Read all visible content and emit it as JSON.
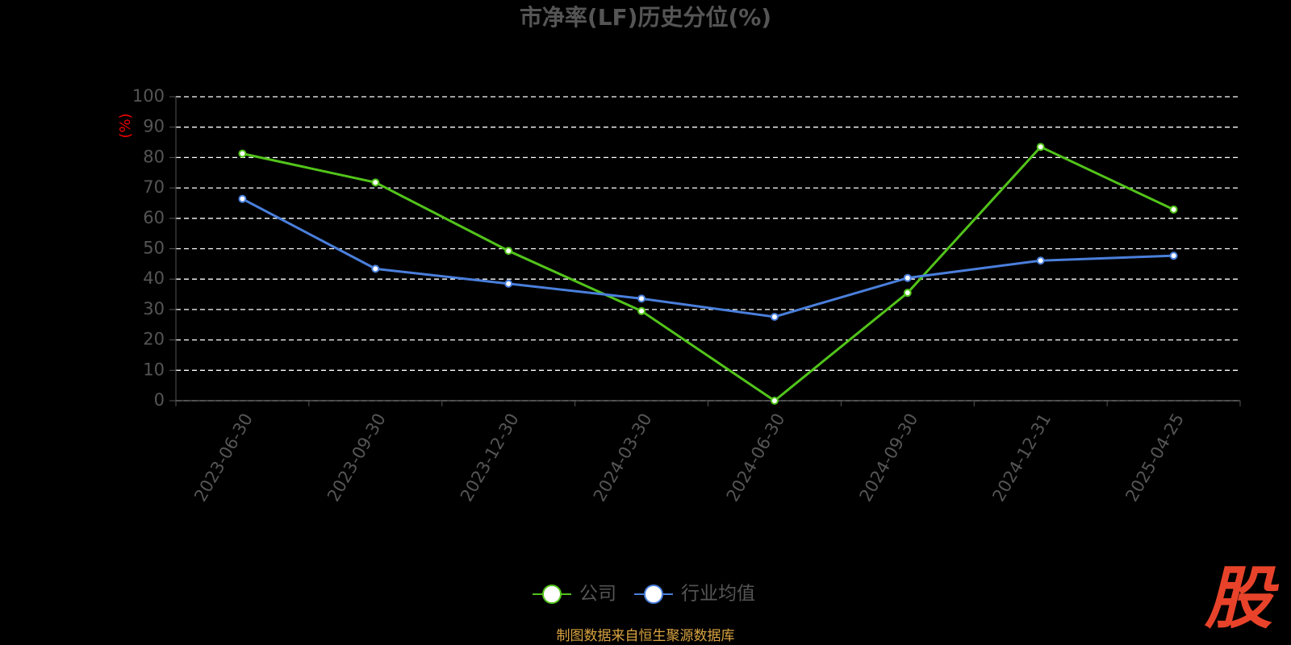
{
  "chart_data": {
    "type": "line",
    "title": "市净率(LF)历史分位(%)",
    "y_label": "(%)",
    "categories": [
      "2023-06-30",
      "2023-09-30",
      "2023-12-30",
      "2024-03-30",
      "2024-06-30",
      "2024-09-30",
      "2024-12-31",
      "2025-04-25"
    ],
    "series": [
      {
        "name": "公司",
        "color": "#52c41a",
        "values": [
          81.3,
          71.8,
          49.3,
          29.5,
          0,
          35.5,
          83.5,
          62.9
        ]
      },
      {
        "name": "行业均值",
        "color": "#4a7fdc",
        "values": [
          66.4,
          43.4,
          38.5,
          33.6,
          27.6,
          40.4,
          46.1,
          47.7
        ]
      }
    ],
    "ylim": [
      0,
      100
    ],
    "yticks": [
      0,
      10,
      20,
      30,
      40,
      50,
      60,
      70,
      80,
      90,
      100
    ],
    "grid": true,
    "legend": "bottom"
  },
  "footer": "制图数据来自恒生聚源数据库",
  "logo": "股"
}
